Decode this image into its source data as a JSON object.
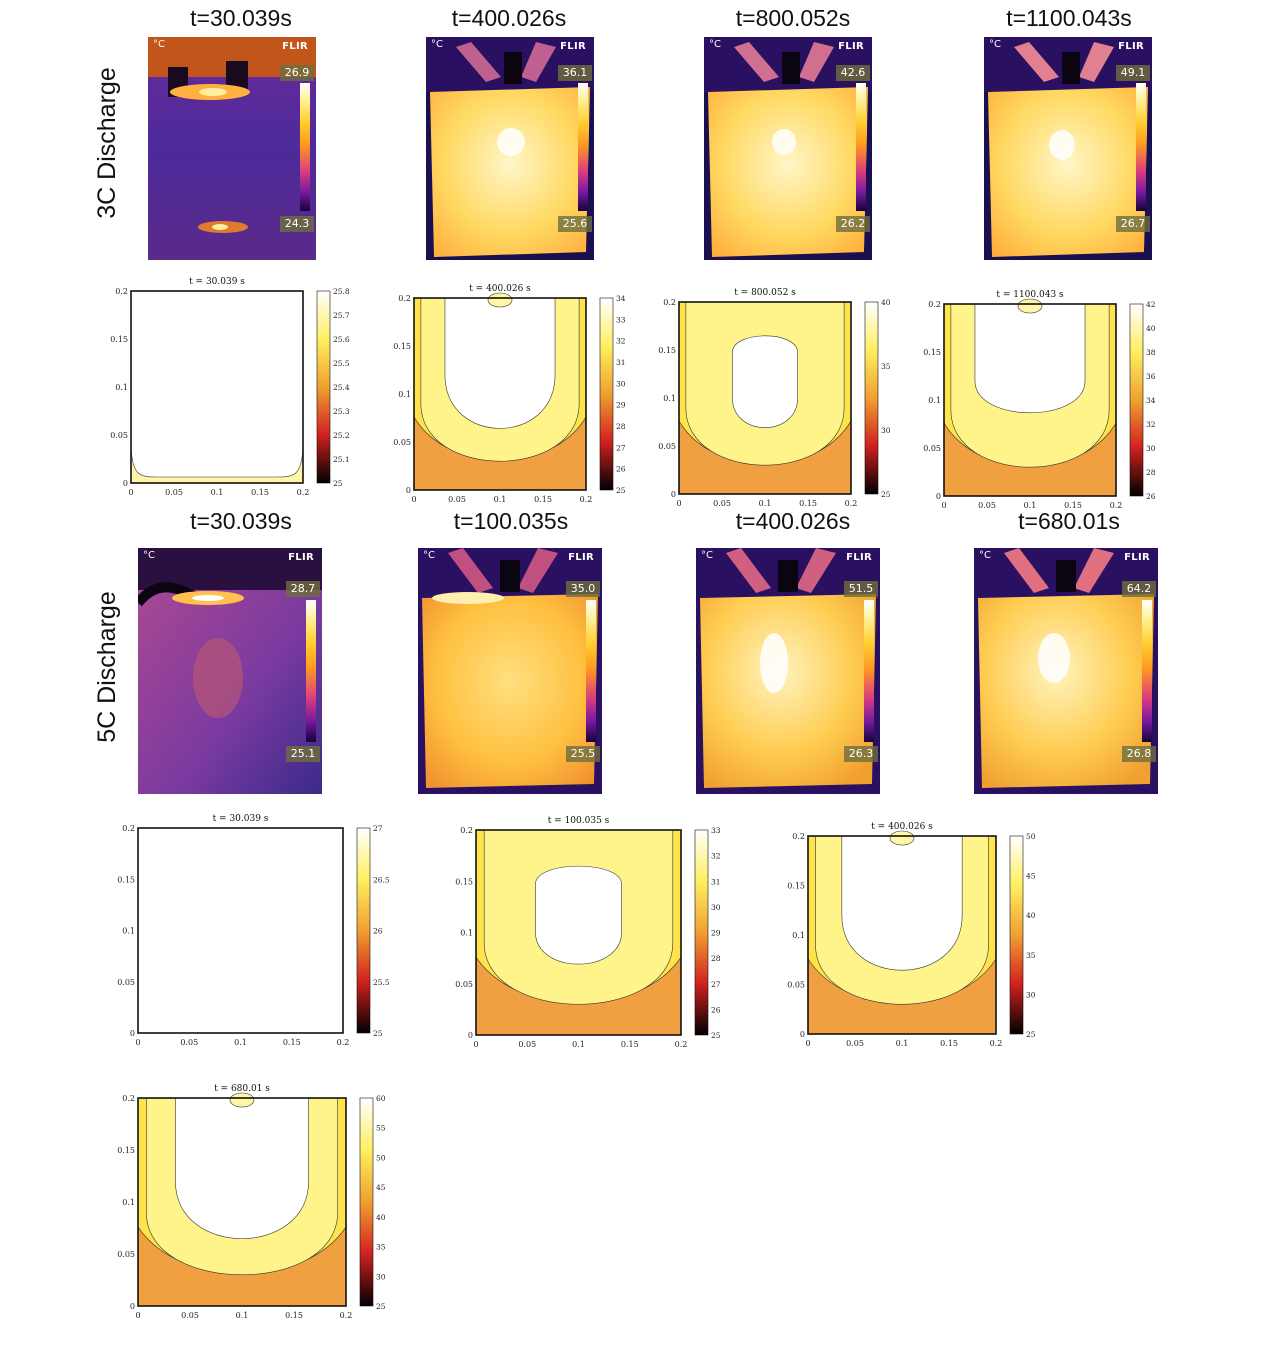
{
  "rows": {
    "discharge_3c": "3C Discharge",
    "discharge_5c": "5C Discharge"
  },
  "thermal_3c": [
    {
      "title": "t=30.039s",
      "unit": "°C",
      "logo": "FLIR",
      "max": "26.9",
      "min": "24.3"
    },
    {
      "title": "t=400.026s",
      "unit": "°C",
      "logo": "FLIR",
      "max": "36.1",
      "min": "25.6"
    },
    {
      "title": "t=800.052s",
      "unit": "°C",
      "logo": "FLIR",
      "max": "42.6",
      "min": "26.2"
    },
    {
      "title": "t=1100.043s",
      "unit": "°C",
      "logo": "FLIR",
      "max": "49.1",
      "min": "26.7"
    }
  ],
  "thermal_5c": [
    {
      "title": "t=30.039s",
      "unit": "°C",
      "logo": "FLIR",
      "max": "28.7",
      "min": "25.1"
    },
    {
      "title": "t=100.035s",
      "unit": "°C",
      "logo": "FLIR",
      "max": "35.0",
      "min": "25.5"
    },
    {
      "title": "t=400.026s",
      "unit": "°C",
      "logo": "FLIR",
      "max": "51.5",
      "min": "26.3"
    },
    {
      "title": "t=680.01s",
      "unit": "°C",
      "logo": "FLIR",
      "max": "64.2",
      "min": "26.8"
    }
  ],
  "sim_3c": [
    {
      "title": "t = 30.039 s",
      "cbar": [
        "25.8",
        "25.7",
        "25.6",
        "25.5",
        "25.4",
        "25.3",
        "25.2",
        "25.1",
        "25"
      ]
    },
    {
      "title": "t = 400.026 s",
      "cbar": [
        "34",
        "33",
        "32",
        "31",
        "30",
        "29",
        "28",
        "27",
        "26",
        "25"
      ]
    },
    {
      "title": "t = 800.052 s",
      "cbar": [
        "40",
        "35",
        "30",
        "25"
      ]
    },
    {
      "title": "t = 1100.043 s",
      "cbar": [
        "42",
        "40",
        "38",
        "36",
        "34",
        "32",
        "30",
        "28",
        "26"
      ]
    }
  ],
  "sim_5c": [
    {
      "title": "t = 30.039 s",
      "cbar": [
        "27",
        "26.5",
        "26",
        "25.5",
        "25"
      ]
    },
    {
      "title": "t = 100.035 s",
      "cbar": [
        "33",
        "32",
        "31",
        "30",
        "29",
        "28",
        "27",
        "26",
        "25"
      ]
    },
    {
      "title": "t = 400.026 s",
      "cbar": [
        "50",
        "45",
        "40",
        "35",
        "30",
        "25"
      ]
    },
    {
      "title": "t = 680.01 s",
      "cbar": [
        "60",
        "55",
        "50",
        "45",
        "40",
        "35",
        "30",
        "25"
      ]
    }
  ],
  "axis": {
    "y_ticks": [
      "0.2",
      "0.15",
      "0.1",
      "0.05",
      "0"
    ],
    "x_ticks": [
      "0",
      "0.05",
      "0.1",
      "0.15",
      "0.2"
    ]
  }
}
